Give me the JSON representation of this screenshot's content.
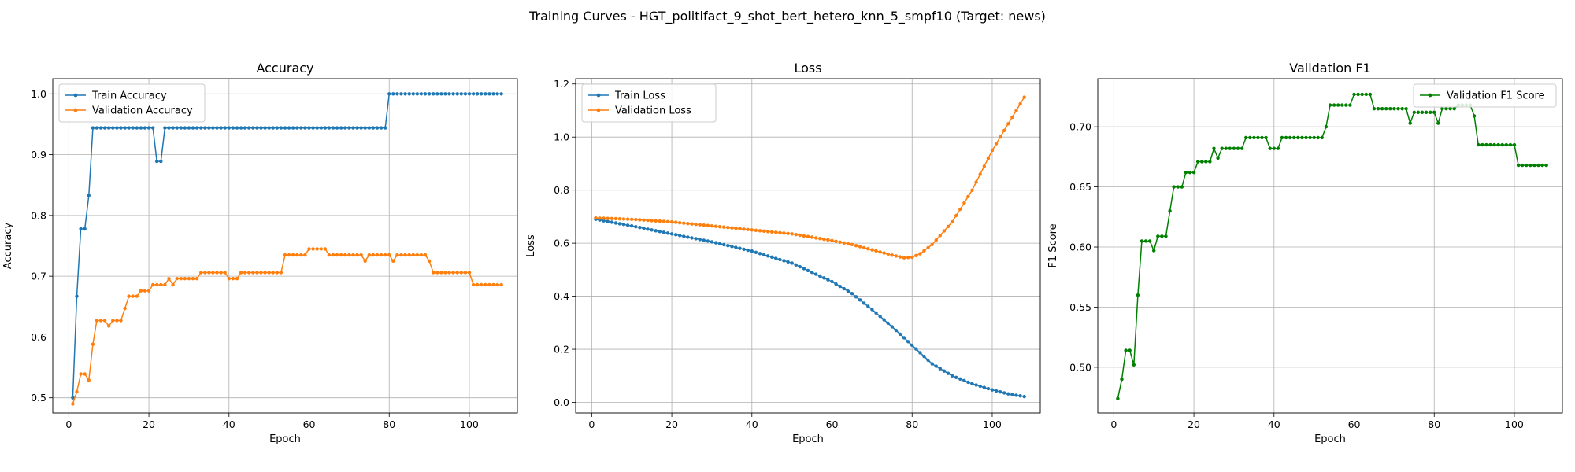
{
  "figure_title": "Training Curves - HGT_politifact_9_shot_bert_hetero_knn_5_smpf10 (Target: news)",
  "chart_data": [
    {
      "type": "line",
      "title": "Accuracy",
      "xlabel": "Epoch",
      "ylabel": "Accuracy",
      "xlim": [
        -4,
        112
      ],
      "ylim": [
        0.475,
        1.025
      ],
      "xticks": [
        0,
        20,
        40,
        60,
        80,
        100
      ],
      "yticks": [
        0.5,
        0.6,
        0.7,
        0.8,
        0.9,
        1.0
      ],
      "xtick_labels": [
        "0",
        "20",
        "40",
        "60",
        "80",
        "100"
      ],
      "ytick_labels": [
        "0.5",
        "0.6",
        "0.7",
        "0.8",
        "0.9",
        "1.0"
      ],
      "grid": true,
      "legend_position": "upper-left",
      "series": [
        {
          "name": "Train Accuracy",
          "color": "#1f77b4",
          "runs": [
            [
              1,
              0.5
            ],
            [
              2,
              0.667
            ],
            [
              3,
              0.778
            ],
            [
              4,
              0.778
            ],
            [
              5,
              0.833
            ],
            [
              6,
              0.944,
              16
            ],
            [
              22,
              0.889,
              2
            ],
            [
              24,
              0.944,
              56
            ],
            [
              80,
              1.0,
              29
            ]
          ]
        },
        {
          "name": "Validation Accuracy",
          "color": "#ff7f0e",
          "runs": [
            [
              1,
              0.49
            ],
            [
              2,
              0.51
            ],
            [
              3,
              0.539,
              2
            ],
            [
              5,
              0.529
            ],
            [
              6,
              0.588
            ],
            [
              7,
              0.627,
              3
            ],
            [
              10,
              0.618
            ],
            [
              11,
              0.627,
              3
            ],
            [
              14,
              0.647
            ],
            [
              15,
              0.667,
              3
            ],
            [
              18,
              0.676,
              3
            ],
            [
              21,
              0.686,
              4
            ],
            [
              25,
              0.696
            ],
            [
              26,
              0.686
            ],
            [
              27,
              0.696,
              6
            ],
            [
              33,
              0.706,
              7
            ],
            [
              40,
              0.696,
              3
            ],
            [
              43,
              0.706,
              11
            ],
            [
              54,
              0.735,
              6
            ],
            [
              60,
              0.745,
              5
            ],
            [
              65,
              0.735,
              9
            ],
            [
              74,
              0.725
            ],
            [
              75,
              0.735,
              6
            ],
            [
              81,
              0.725
            ],
            [
              82,
              0.735,
              8
            ],
            [
              90,
              0.725
            ],
            [
              91,
              0.706,
              10
            ],
            [
              101,
              0.686,
              8
            ]
          ]
        }
      ]
    },
    {
      "type": "line",
      "title": "Loss",
      "xlabel": "Epoch",
      "ylabel": "Loss",
      "xlim": [
        -4,
        112
      ],
      "ylim": [
        -0.04,
        1.22
      ],
      "xticks": [
        0,
        20,
        40,
        60,
        80,
        100
      ],
      "yticks": [
        0.0,
        0.2,
        0.4,
        0.6,
        0.8,
        1.0,
        1.2
      ],
      "xtick_labels": [
        "0",
        "20",
        "40",
        "60",
        "80",
        "100"
      ],
      "ytick_labels": [
        "0.0",
        "0.2",
        "0.4",
        "0.6",
        "0.8",
        "1.0",
        "1.2"
      ],
      "grid": true,
      "legend_position": "upper-left",
      "series": [
        {
          "name": "Train Loss",
          "color": "#1f77b4",
          "knots": [
            [
              1,
              0.69
            ],
            [
              10,
              0.665
            ],
            [
              20,
              0.635
            ],
            [
              30,
              0.605
            ],
            [
              40,
              0.57
            ],
            [
              50,
              0.525
            ],
            [
              60,
              0.455
            ],
            [
              65,
              0.41
            ],
            [
              70,
              0.35
            ],
            [
              75,
              0.285
            ],
            [
              80,
              0.215
            ],
            [
              85,
              0.145
            ],
            [
              90,
              0.1
            ],
            [
              95,
              0.07
            ],
            [
              100,
              0.047
            ],
            [
              104,
              0.032
            ],
            [
              108,
              0.022
            ]
          ]
        },
        {
          "name": "Validation Loss",
          "color": "#ff7f0e",
          "knots": [
            [
              1,
              0.695
            ],
            [
              10,
              0.69
            ],
            [
              20,
              0.68
            ],
            [
              30,
              0.665
            ],
            [
              40,
              0.65
            ],
            [
              50,
              0.635
            ],
            [
              60,
              0.61
            ],
            [
              65,
              0.595
            ],
            [
              70,
              0.575
            ],
            [
              75,
              0.555
            ],
            [
              78,
              0.545
            ],
            [
              80,
              0.547
            ],
            [
              82,
              0.56
            ],
            [
              85,
              0.595
            ],
            [
              90,
              0.68
            ],
            [
              95,
              0.8
            ],
            [
              100,
              0.95
            ],
            [
              104,
              1.05
            ],
            [
              108,
              1.15
            ]
          ]
        }
      ]
    },
    {
      "type": "line",
      "title": "Validation F1",
      "xlabel": "Epoch",
      "ylabel": "F1 Score",
      "xlim": [
        -4,
        112
      ],
      "ylim": [
        0.462,
        0.74
      ],
      "xticks": [
        0,
        20,
        40,
        60,
        80,
        100
      ],
      "yticks": [
        0.5,
        0.55,
        0.6,
        0.65,
        0.7
      ],
      "xtick_labels": [
        "0",
        "20",
        "40",
        "60",
        "80",
        "100"
      ],
      "ytick_labels": [
        "0.50",
        "0.55",
        "0.60",
        "0.65",
        "0.70"
      ],
      "grid": true,
      "legend_position": "upper-right",
      "series": [
        {
          "name": "Validation F1 Score",
          "color": "#008000",
          "runs": [
            [
              1,
              0.474
            ],
            [
              2,
              0.49
            ],
            [
              3,
              0.514,
              2
            ],
            [
              5,
              0.502
            ],
            [
              6,
              0.56
            ],
            [
              7,
              0.605,
              3
            ],
            [
              10,
              0.597
            ],
            [
              11,
              0.609,
              3
            ],
            [
              14,
              0.63
            ],
            [
              15,
              0.65,
              3
            ],
            [
              18,
              0.662,
              3
            ],
            [
              21,
              0.671,
              4
            ],
            [
              25,
              0.682
            ],
            [
              26,
              0.674
            ],
            [
              27,
              0.682,
              6
            ],
            [
              33,
              0.691,
              6
            ],
            [
              39,
              0.682,
              3
            ],
            [
              42,
              0.691,
              11
            ],
            [
              53,
              0.7
            ],
            [
              54,
              0.718,
              6
            ],
            [
              60,
              0.727,
              5
            ],
            [
              65,
              0.715,
              9
            ],
            [
              74,
              0.703
            ],
            [
              75,
              0.712,
              6
            ],
            [
              81,
              0.703
            ],
            [
              82,
              0.715,
              4
            ],
            [
              86,
              0.718,
              4
            ],
            [
              90,
              0.709
            ],
            [
              91,
              0.685,
              10
            ],
            [
              101,
              0.668,
              8
            ]
          ]
        }
      ]
    }
  ]
}
